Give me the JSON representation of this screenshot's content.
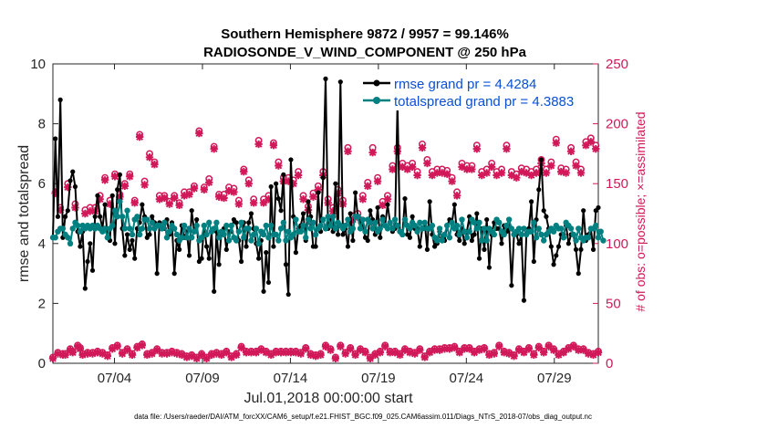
{
  "chart_data": {
    "type": "line",
    "title_line1": "Southern Hemisphere 9872 / 9957 = 99.146%",
    "title_line2": "RADIOSONDE_V_WIND_COMPONENT @ 250 hPa",
    "xlabel": "Jul.01,2018 00:00:00 start",
    "ylabel_left": "rmse and totalspread",
    "ylabel_right": "# of obs: o=possible; ×=assimilated",
    "footnote": "data file: /Users/raeder/DAI/ATM_forcXX/CAM6_setup/f.e21.FHIST_BGC.f09_025.CAM6assim.011/Diags_NTrS_2018-07/obs_diag_output.nc",
    "xlim": [
      0.5,
      31.5
    ],
    "ylim_left": [
      0,
      10
    ],
    "ylim_right": [
      0,
      250
    ],
    "x_ticks": [
      4,
      9,
      14,
      19,
      24,
      29
    ],
    "x_tick_labels": [
      "07/04",
      "07/09",
      "07/14",
      "07/19",
      "07/24",
      "07/29"
    ],
    "y_left_ticks": [
      "0",
      "2",
      "4",
      "6",
      "8",
      "10"
    ],
    "y_right_ticks": [
      "0",
      "50",
      "100",
      "150",
      "200",
      "250"
    ],
    "colors": {
      "rmse": "#000000",
      "spread": "#008080",
      "obs": "#d1195a",
      "legend_text": "#0a4fd6"
    },
    "series": [
      {
        "name": "rmse",
        "legend": "rmse grand pr = 4.4284",
        "axis": "left",
        "values": [
          4.2,
          7.5,
          4.9,
          8.8,
          4.2,
          4.9,
          5.1,
          6.1,
          6.4,
          5.9,
          4.4,
          3.9,
          4.4,
          2.5,
          3.4,
          4.0,
          3.1,
          4.9,
          5.6,
          4.9,
          4.5,
          5.3,
          4.2,
          4.1,
          5.6,
          4.0,
          5.8,
          6.3,
          4.5,
          3.6,
          4.3,
          3.8,
          4.1,
          3.5,
          4.5,
          4.7,
          5.3,
          4.9,
          4.2,
          4.3,
          4.9,
          4.7,
          3.0,
          4.7,
          4.5,
          4.5,
          4.8,
          4.3,
          4.7,
          3.0,
          4.1,
          3.8,
          4.6,
          4.2,
          4.4,
          3.6,
          5.1,
          4.4,
          4.8,
          3.4,
          3.5,
          4.6,
          3.9,
          3.5,
          4.4,
          2.4,
          4.4,
          3.3,
          4.4,
          4.5,
          3.8,
          4.4,
          4.4,
          4.8,
          4.7,
          4.1,
          3.4,
          4.7,
          3.9,
          4.7,
          5.0,
          4.5,
          4.0,
          3.5,
          4.1,
          2.4,
          3.7,
          2.7,
          5.9,
          3.9,
          6.0,
          5.5,
          5.1,
          6.3,
          3.3,
          2.3,
          6.8,
          4.9,
          3.7,
          4.5,
          4.6,
          5.0,
          4.1,
          5.4,
          4.9,
          3.9,
          3.9,
          5.7,
          4.4,
          6.2,
          9.5,
          4.5,
          4.8,
          4.4,
          6.0,
          4.3,
          9.4,
          4.3,
          4.5,
          3.9,
          5.0,
          4.1,
          5.7,
          4.9,
          4.7,
          4.6,
          4.2,
          4.1,
          5.1,
          4.8,
          4.3,
          5.2,
          4.2,
          4.9,
          4.6,
          5.3,
          4.7,
          4.4,
          4.5,
          8.7,
          4.4,
          4.3,
          5.5,
          4.3,
          4.2,
          4.9,
          4.5,
          4.5,
          3.9,
          4.5,
          4.7,
          3.8,
          5.4,
          4.3,
          3.9,
          4.0,
          4.4,
          4.2,
          4.1,
          4.6,
          4.8,
          4.7,
          5.3,
          4.3,
          4.1,
          4.5,
          4.0,
          4.4,
          4.9,
          4.1,
          4.3,
          5.0,
          3.5,
          4.5,
          3.8,
          4.8,
          3.2,
          4.3,
          4.7,
          4.5,
          4.5,
          4.0,
          4.6,
          4.4,
          4.6,
          2.6,
          4.3,
          4.3,
          4.0,
          4.3,
          2.1,
          4.3,
          4.5,
          5.4,
          3.4,
          4.8,
          5.8,
          6.8,
          5.1,
          4.9,
          4.5,
          3.9,
          3.3,
          3.6,
          3.9,
          4.3,
          4.3,
          4.6,
          4.0,
          4.3,
          4.3,
          3.8,
          3.0,
          3.8,
          5.1,
          4.1,
          4.3,
          4.5,
          3.8,
          5.1,
          5.2
        ]
      },
      {
        "name": "totalspread",
        "legend": "totalspread grand pr = 4.3883",
        "axis": "left",
        "values": [
          4.2,
          4.2,
          4.4,
          4.5,
          4.5,
          4.3,
          4.2,
          4.0,
          4.5,
          4.7,
          4.6,
          4.4,
          4.6,
          4.5,
          4.6,
          4.5,
          4.6,
          4.5,
          4.6,
          4.5,
          4.4,
          4.5,
          4.2,
          4.5,
          4.6,
          5.1,
          4.9,
          5.4,
          4.9,
          4.5,
          5.1,
          4.5,
          4.3,
          4.8,
          4.9,
          4.3,
          4.5,
          4.8,
          4.8,
          4.5,
          4.7,
          4.5,
          4.6,
          4.6,
          4.5,
          4.7,
          4.2,
          4.4,
          4.6,
          4.5,
          4.3,
          4.1,
          4.2,
          4.6,
          4.2,
          4.5,
          4.2,
          4.4,
          4.6,
          4.1,
          4.2,
          4.6,
          4.3,
          4.7,
          4.4,
          4.5,
          4.7,
          4.2,
          4.4,
          4.3,
          4.6,
          4.1,
          4.6,
          4.2,
          4.1,
          4.4,
          4.7,
          4.2,
          4.5,
          4.5,
          4.1,
          4.3,
          4.5,
          4.0,
          4.4,
          4.3,
          4.6,
          4.2,
          4.6,
          4.3,
          4.3,
          4.1,
          4.5,
          4.7,
          4.1,
          4.4,
          4.2,
          4.3,
          4.8,
          4.4,
          4.4,
          4.6,
          4.2,
          4.8,
          4.5,
          4.7,
          4.3,
          4.5,
          4.6,
          4.8,
          4.5,
          4.9,
          4.6,
          4.9,
          4.5,
          4.7,
          4.6,
          4.5,
          4.6,
          4.8,
          4.4,
          4.5,
          4.9,
          4.9,
          4.5,
          4.8,
          4.4,
          4.8,
          4.7,
          4.5,
          4.7,
          4.4,
          4.5,
          4.8,
          4.6,
          4.5,
          4.7,
          4.5,
          4.8,
          4.6,
          4.4,
          4.3,
          4.8,
          4.6,
          4.5,
          4.7,
          4.6,
          4.4,
          4.7,
          4.5,
          4.7,
          4.5,
          4.5,
          4.6,
          4.2,
          4.1,
          4.5,
          4.1,
          4.3,
          4.6,
          4.2,
          4.7,
          4.5,
          4.6,
          4.3,
          4.8,
          4.4,
          4.2,
          4.4,
          4.8,
          4.7,
          4.5,
          4.7,
          4.1,
          4.5,
          4.1,
          4.5,
          4.4,
          4.3,
          4.8,
          4.7,
          4.4,
          4.3,
          4.6,
          4.8,
          4.5,
          4.3,
          4.4,
          4.5,
          4.3,
          4.5,
          4.3,
          4.4,
          4.4,
          4.7,
          4.2,
          4.5,
          4.3,
          4.1,
          4.3,
          4.4,
          4.5,
          4.4,
          4.6,
          4.5,
          4.5,
          4.2,
          4.7,
          4.6,
          4.5,
          4.3,
          4.1,
          4.5,
          4.2,
          4.1,
          4.2,
          4.2,
          4.5,
          4.5,
          4.6,
          4.2,
          4.4,
          4.1
        ]
      },
      {
        "name": "obs_possible",
        "axis": "right",
        "marker": "o",
        "values": [
          5,
          143,
          9,
          130,
          8,
          8,
          150,
          12,
          10,
          133,
          15,
          13,
          8,
          128,
          9,
          130,
          9,
          130,
          10,
          140,
          9,
          155,
          7,
          136,
          13,
          158,
          15,
          141,
          9,
          150,
          12,
          158,
          8,
          136,
          14,
          191,
          16,
          152,
          8,
          175,
          9,
          168,
          12,
          140,
          9,
          140,
          9,
          135,
          10,
          140,
          9,
          134,
          8,
          143,
          6,
          143,
          7,
          148,
          5,
          194,
          8,
          147,
          5,
          154,
          8,
          181,
          9,
          141,
          8,
          141,
          10,
          147,
          6,
          146,
          8,
          136,
          14,
          162,
          10,
          153,
          10,
          137,
          10,
          186,
          12,
          137,
          10,
          140,
          8,
          184,
          10,
          168,
          10,
          155,
          10,
          155,
          10,
          153,
          10,
          160,
          9,
          140,
          13,
          131,
          8,
          142,
          7,
          148,
          8,
          160,
          15,
          137,
          12,
          130,
          5,
          145,
          15,
          136,
          9,
          180,
          13,
          123,
          8,
          125,
          12,
          140,
          10,
          151,
          5,
          180,
          8,
          155,
          10,
          135,
          15,
          140,
          10,
          165,
          10,
          180,
          8,
          167,
          12,
          165,
          10,
          167,
          9,
          160,
          12,
          183,
          6,
          170,
          10,
          160,
          12,
          162,
          12,
          162,
          13,
          161,
          13,
          155,
          14,
          143,
          10,
          167,
          13,
          165,
          13,
          165,
          10,
          182,
          12,
          160,
          13,
          162,
          8,
          167,
          9,
          160,
          15,
          162,
          10,
          182,
          9,
          160,
          7,
          158,
          12,
          163,
          10,
          162,
          13,
          160,
          8,
          162,
          14,
          170,
          10,
          162,
          15,
          168,
          12,
          187,
          8,
          163,
          10,
          162,
          13,
          180,
          15,
          168,
          12,
          162,
          12,
          185,
          9,
          188,
          8,
          182,
          10
        ]
      },
      {
        "name": "obs_assimilated",
        "axis": "right",
        "marker": "x",
        "values": [
          4,
          142,
          8,
          128,
          7,
          7,
          147,
          11,
          9,
          130,
          14,
          12,
          7,
          125,
          8,
          127,
          8,
          127,
          9,
          137,
          8,
          153,
          6,
          133,
          12,
          156,
          14,
          139,
          8,
          148,
          11,
          156,
          7,
          134,
          13,
          189,
          15,
          149,
          7,
          172,
          8,
          166,
          11,
          137,
          8,
          138,
          8,
          133,
          9,
          138,
          8,
          132,
          7,
          140,
          5,
          141,
          6,
          146,
          4,
          192,
          7,
          145,
          4,
          151,
          7,
          179,
          8,
          139,
          7,
          138,
          9,
          144,
          5,
          143,
          7,
          133,
          13,
          160,
          9,
          150,
          9,
          134,
          9,
          183,
          11,
          134,
          9,
          137,
          7,
          182,
          9,
          165,
          9,
          152,
          9,
          152,
          9,
          150,
          9,
          157,
          8,
          137,
          12,
          128,
          7,
          139,
          6,
          145,
          7,
          157,
          14,
          134,
          11,
          127,
          4,
          142,
          14,
          133,
          8,
          177,
          12,
          120,
          7,
          122,
          11,
          137,
          9,
          148,
          4,
          176,
          7,
          152,
          9,
          132,
          14,
          137,
          9,
          162,
          9,
          177,
          7,
          164,
          11,
          162,
          9,
          164,
          8,
          157,
          11,
          180,
          5,
          167,
          9,
          157,
          11,
          159,
          11,
          159,
          12,
          158,
          12,
          152,
          13,
          140,
          9,
          164,
          12,
          162,
          12,
          162,
          9,
          179,
          11,
          157,
          12,
          159,
          7,
          164,
          8,
          157,
          14,
          159,
          9,
          179,
          8,
          157,
          6,
          155,
          11,
          160,
          9,
          159,
          12,
          157,
          7,
          159,
          13,
          167,
          9,
          159,
          14,
          165,
          11,
          184,
          7,
          160,
          9,
          159,
          12,
          177,
          14,
          165,
          11,
          159,
          11,
          182,
          8,
          185,
          7,
          179,
          9
        ]
      }
    ]
  }
}
